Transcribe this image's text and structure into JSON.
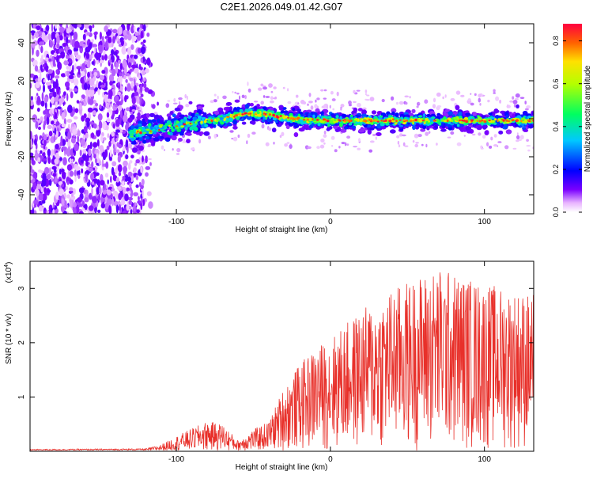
{
  "title": "C2E1.2026.049.01.42.G07",
  "chart_data": [
    {
      "type": "heatmap",
      "xlabel": "Height of straight line (km)",
      "ylabel": "Frequency (Hz)",
      "xlim": [
        -195,
        132
      ],
      "ylim": [
        -50,
        50
      ],
      "x_ticks": [
        -100,
        0,
        100
      ],
      "y_ticks": [
        -40,
        -20,
        0,
        20,
        40
      ],
      "x_tick_labels": [
        "-100",
        "0",
        "100"
      ],
      "y_tick_labels": [
        "-40",
        "-20",
        "0",
        "20",
        "40"
      ],
      "noise_region_x": [
        -195,
        -120
      ],
      "signal_start_x": -130,
      "signal_center_hz": [
        {
          "x": -130,
          "f": -8
        },
        {
          "x": -110,
          "f": -5
        },
        {
          "x": -90,
          "f": -2
        },
        {
          "x": -70,
          "f": 0
        },
        {
          "x": -55,
          "f": 3
        },
        {
          "x": -40,
          "f": 2
        },
        {
          "x": -25,
          "f": 0
        },
        {
          "x": 0,
          "f": -1
        },
        {
          "x": 50,
          "f": -1
        },
        {
          "x": 132,
          "f": -1
        }
      ],
      "colorbar": {
        "label": "Normalized spectral amplitude",
        "range": [
          0.0,
          0.88
        ],
        "ticks": [
          0.0,
          0.2,
          0.4,
          0.6,
          0.8
        ],
        "tick_labels": [
          "0.0",
          "0.2",
          "0.4",
          "0.6",
          "0.8"
        ]
      }
    },
    {
      "type": "line",
      "xlabel": "Height of straight line (km)",
      "ylabel": "SNR (10 * v/v)",
      "y_multiplier": "(x10",
      "y_multiplier_exp": "4",
      "y_multiplier_close": ")",
      "xlim": [
        -195,
        132
      ],
      "ylim": [
        0,
        3.5
      ],
      "x_ticks": [
        -100,
        0,
        100
      ],
      "y_ticks": [
        1,
        2,
        3
      ],
      "x_tick_labels": [
        "-100",
        "0",
        "100"
      ],
      "y_tick_labels": [
        "1",
        "2",
        "3"
      ],
      "color": "#e8302a",
      "envelope": [
        {
          "x": -195,
          "y": 0.04
        },
        {
          "x": -120,
          "y": 0.05
        },
        {
          "x": -110,
          "y": 0.12
        },
        {
          "x": -95,
          "y": 0.35
        },
        {
          "x": -80,
          "y": 0.55
        },
        {
          "x": -70,
          "y": 0.5
        },
        {
          "x": -60,
          "y": 0.2
        },
        {
          "x": -50,
          "y": 0.4
        },
        {
          "x": -40,
          "y": 0.55
        },
        {
          "x": -30,
          "y": 1.2
        },
        {
          "x": -20,
          "y": 1.6
        },
        {
          "x": -10,
          "y": 1.9
        },
        {
          "x": 0,
          "y": 2.1
        },
        {
          "x": 20,
          "y": 2.6
        },
        {
          "x": 40,
          "y": 3.0
        },
        {
          "x": 70,
          "y": 3.4
        },
        {
          "x": 100,
          "y": 3.1
        },
        {
          "x": 132,
          "y": 2.9
        }
      ]
    }
  ]
}
